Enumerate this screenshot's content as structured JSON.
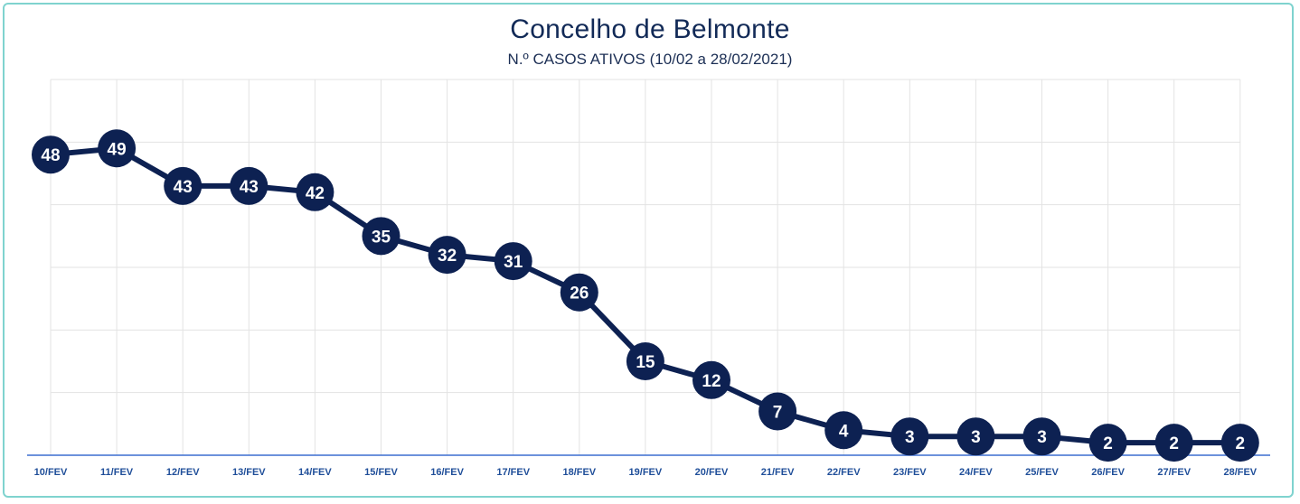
{
  "chart_data": {
    "type": "line",
    "title": "Concelho de Belmonte",
    "subtitle": "N.º CASOS ATIVOS (10/02 a 28/02/2021)",
    "xlabel": "",
    "ylabel": "",
    "categories": [
      "10/FEV",
      "11/FEV",
      "12/FEV",
      "13/FEV",
      "14/FEV",
      "15/FEV",
      "16/FEV",
      "17/FEV",
      "18/FEV",
      "19/FEV",
      "20/FEV",
      "21/FEV",
      "22/FEV",
      "23/FEV",
      "24/FEV",
      "25/FEV",
      "26/FEV",
      "27/FEV",
      "28/FEV"
    ],
    "series": [
      {
        "values": [
          48,
          49,
          43,
          43,
          42,
          35,
          32,
          31,
          26,
          15,
          12,
          7,
          4,
          3,
          3,
          3,
          2,
          2,
          2
        ]
      }
    ],
    "ylim": [
      0,
      60
    ],
    "grid": true,
    "legend": "none",
    "colors": {
      "line": "#0d2152",
      "marker": "#0d2152",
      "marker_text": "#ffffff",
      "tick_text": "#1f4e99",
      "axis": "#3d6fd1",
      "grid": "#e3e3e3",
      "frame": "#7fd3cf"
    }
  }
}
